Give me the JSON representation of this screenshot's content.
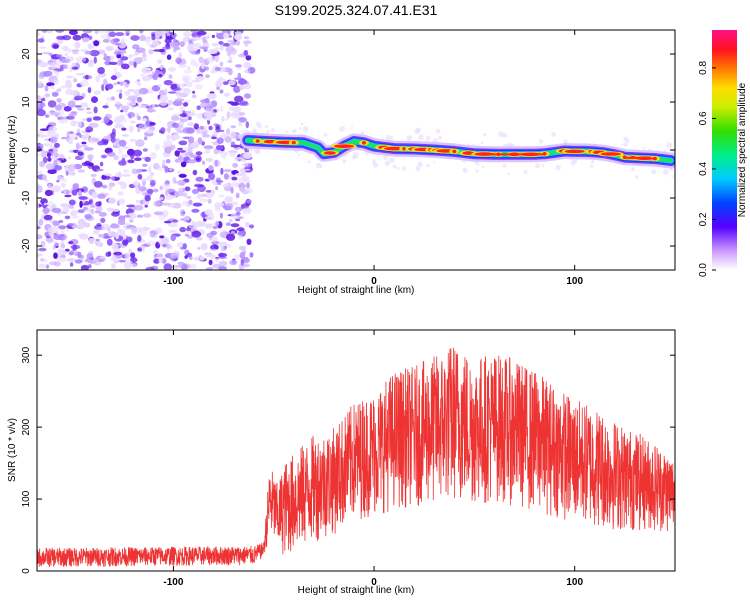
{
  "title": "S199.2025.324.07.41.E31",
  "chart_data": [
    {
      "type": "heatmap",
      "title": "S199.2025.324.07.41.E31",
      "xlabel": "Height of straight line (km)",
      "ylabel": "Frequency (Hz)",
      "xlim": [
        -168,
        150
      ],
      "ylim": [
        -25,
        25
      ],
      "xticks": [
        -100,
        0,
        100
      ],
      "yticks": [
        20,
        10,
        0,
        -10,
        -20
      ],
      "noise_region_end_km": -63,
      "signal_path": {
        "x": [
          -63,
          -55,
          -45,
          -35,
          -28,
          -25,
          -20,
          -15,
          -10,
          -5,
          0,
          10,
          20,
          30,
          40,
          50,
          60,
          70,
          80,
          85,
          90,
          95,
          100,
          105,
          110,
          115,
          120,
          125,
          130,
          140,
          148
        ],
        "y": [
          2.0,
          1.8,
          1.6,
          1.5,
          0.5,
          -0.8,
          -0.5,
          0.8,
          1.8,
          1.5,
          0.8,
          0.3,
          0.2,
          0.0,
          -0.3,
          -0.8,
          -0.9,
          -0.9,
          -0.9,
          -0.8,
          -0.5,
          -0.2,
          -0.3,
          -0.3,
          -0.4,
          -0.6,
          -1.0,
          -1.5,
          -1.6,
          -1.8,
          -2.2
        ]
      },
      "colorbar": {
        "label": "Normalized spectral amplitude",
        "ticks": [
          "0.0",
          "0.2",
          "0.4",
          "0.6",
          "0.8"
        ],
        "range": [
          0,
          0.95
        ]
      }
    },
    {
      "type": "line",
      "xlabel": "Height of straight line (km)",
      "ylabel": "SNR (10 * v/v)",
      "xlim": [
        -168,
        150
      ],
      "ylim": [
        0,
        335
      ],
      "xticks": [
        -100,
        0,
        100
      ],
      "yticks": [
        0,
        100,
        200,
        300
      ],
      "series": [
        {
          "name": "SNR",
          "color": "#ee3333",
          "envelope": {
            "x": [
              -168,
              -60,
              -55,
              -52,
              -48,
              -45,
              -40,
              -30,
              -20,
              -10,
              0,
              10,
              20,
              30,
              40,
              50,
              60,
              70,
              80,
              90,
              100,
              110,
              120,
              130,
              140,
              150
            ],
            "upper": [
              32,
              35,
              40,
              150,
              120,
              150,
              165,
              190,
              200,
              235,
              250,
              280,
              285,
              300,
              320,
              300,
              305,
              295,
              280,
              260,
              240,
              230,
              210,
              195,
              180,
              160
            ],
            "lower": [
              5,
              8,
              20,
              45,
              30,
              20,
              25,
              40,
              50,
              70,
              75,
              85,
              90,
              90,
              95,
              90,
              95,
              90,
              80,
              75,
              65,
              60,
              55,
              55,
              55,
              50
            ]
          }
        }
      ]
    }
  ]
}
